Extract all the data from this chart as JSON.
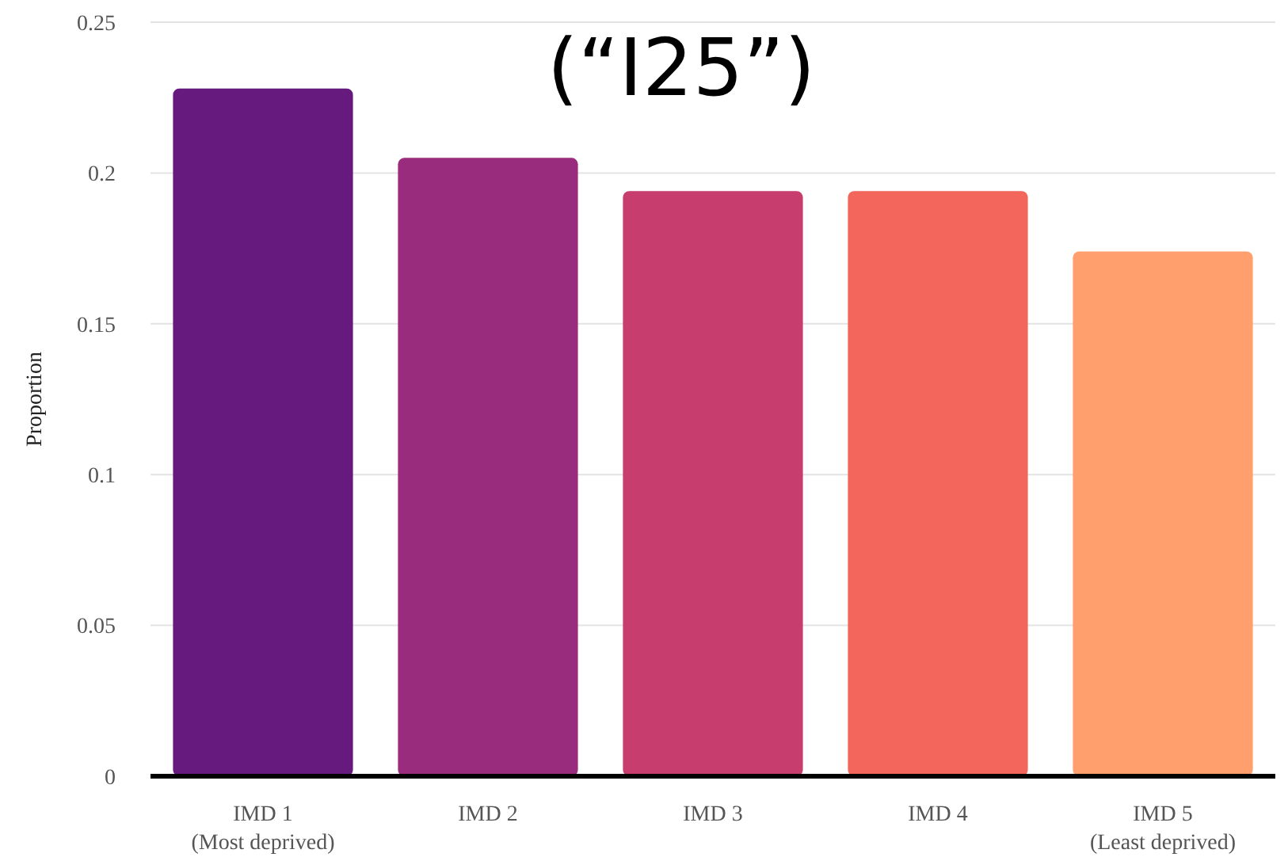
{
  "chart_data": {
    "type": "bar",
    "title": "(“I25”)",
    "ylabel": "Proportion",
    "categories": [
      "IMD 1\n(Most deprived)",
      "IMD 2",
      "IMD 3",
      "IMD 4",
      "IMD 5\n(Least deprived)"
    ],
    "values": [
      0.228,
      0.205,
      0.194,
      0.194,
      0.174
    ],
    "colors": [
      "#661a7e",
      "#9a2c7d",
      "#c73d6e",
      "#f2665c",
      "#fe9f6d"
    ],
    "ylim": [
      0,
      0.25
    ],
    "yticks": [
      0,
      0.05,
      0.1,
      0.15,
      0.2,
      0.25
    ],
    "grid": "y"
  }
}
